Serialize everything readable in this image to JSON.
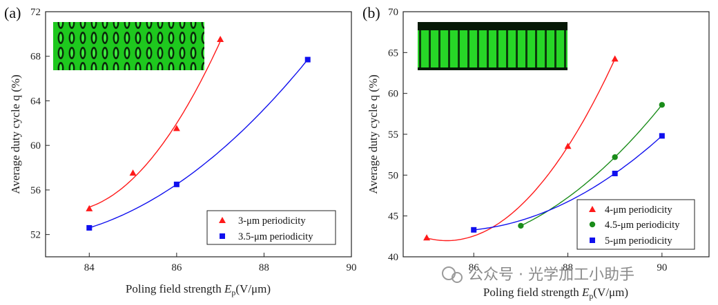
{
  "chart_data": [
    {
      "type": "scatter",
      "panel_label": "(a)",
      "xlabel_main": "Poling field strength ",
      "xlabel_italic": "E",
      "xlabel_sub": "p",
      "xlabel_unit": "(V/μm)",
      "ylabel": "Average duty cycle q (%)",
      "xlim": [
        83,
        90
      ],
      "ylim": [
        50,
        72
      ],
      "xticks": [
        84,
        86,
        88,
        90
      ],
      "yticks": [
        52,
        56,
        60,
        64,
        68,
        72
      ],
      "inset": "domain-micrograph",
      "legend_position": "bottom-right",
      "series": [
        {
          "name": "3-μm periodicity",
          "marker": "triangle",
          "color": "#ff1a1a",
          "x": [
            84,
            85,
            86,
            87
          ],
          "y": [
            54.3,
            57.5,
            61.5,
            69.5
          ]
        },
        {
          "name": "3.5-μm periodicity",
          "marker": "square",
          "color": "#1010ee",
          "x": [
            84,
            86,
            89
          ],
          "y": [
            52.6,
            56.5,
            67.7
          ]
        }
      ]
    },
    {
      "type": "scatter",
      "panel_label": "(b)",
      "xlabel_main": "Poling field strength ",
      "xlabel_italic": "E",
      "xlabel_sub": "p",
      "xlabel_unit": "(V/μm)",
      "ylabel": "Average duty cycle q (%)",
      "xlim": [
        84.5,
        91
      ],
      "ylim": [
        40,
        70
      ],
      "xticks": [
        86,
        88,
        90
      ],
      "yticks": [
        40,
        45,
        50,
        55,
        60,
        65,
        70
      ],
      "inset": "domain-micrograph",
      "legend_position": "bottom-right",
      "series": [
        {
          "name": "4-μm periodicity",
          "marker": "triangle",
          "color": "#ff1a1a",
          "x": [
            85,
            88,
            89
          ],
          "y": [
            42.3,
            53.5,
            64.2
          ]
        },
        {
          "name": "4.5-μm periodicity",
          "marker": "circle",
          "color": "#1a8c1a",
          "x": [
            87,
            89,
            90
          ],
          "y": [
            43.8,
            52.2,
            58.6
          ]
        },
        {
          "name": "5-μm periodicity",
          "marker": "square",
          "color": "#1010ee",
          "x": [
            86,
            89,
            90
          ],
          "y": [
            43.3,
            50.2,
            54.8
          ]
        }
      ]
    }
  ],
  "watermark": "公众号 · 光学加工小助手"
}
